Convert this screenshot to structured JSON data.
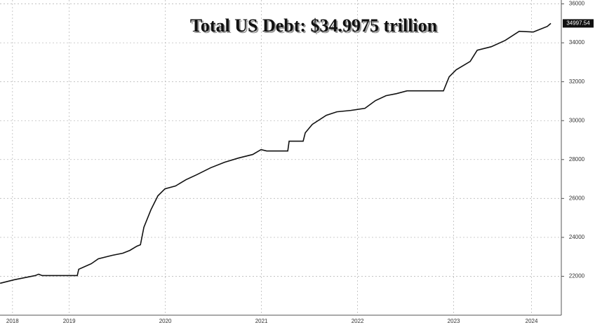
{
  "chart_data": {
    "type": "line",
    "title": "Total US Debt: $34.9975 trillion",
    "x": [
      2018.781,
      2018.927,
      2019.036,
      2019.146,
      2019.182,
      2019.219,
      2019.584,
      2019.599,
      2019.73,
      2019.803,
      2019.949,
      2020.058,
      2020.131,
      2020.204,
      2020.241,
      2020.277,
      2020.35,
      2020.423,
      2020.496,
      2020.606,
      2020.715,
      2020.825,
      2020.971,
      2021.117,
      2021.263,
      2021.409,
      2021.496,
      2021.555,
      2021.774,
      2021.788,
      2021.934,
      2021.956,
      2022.029,
      2022.175,
      2022.285,
      2022.431,
      2022.577,
      2022.686,
      2022.796,
      2022.905,
      2023.015,
      2023.394,
      2023.453,
      2023.526,
      2023.672,
      2023.745,
      2023.891,
      2024.036,
      2024.182,
      2024.328,
      2024.474,
      2024.511
    ],
    "series": [
      {
        "color": "#111111",
        "values": [
          21640,
          21820,
          21928,
          22036,
          22108,
          22036,
          22036,
          22360,
          22647,
          22899,
          23079,
          23187,
          23331,
          23547,
          23619,
          24518,
          25417,
          26137,
          26496,
          26640,
          26964,
          27216,
          27576,
          27863,
          28079,
          28259,
          28511,
          28439,
          28439,
          28942,
          28942,
          29374,
          29806,
          30273,
          30453,
          30525,
          30633,
          31029,
          31281,
          31388,
          31532,
          31532,
          32252,
          32612,
          33043,
          33619,
          33799,
          34122,
          34590,
          34554,
          34842,
          34997.54
        ]
      }
    ],
    "xlim": [
      2018.78,
      2024.62
    ],
    "xticks": [
      {
        "value": 2018.91,
        "label": "2018"
      },
      {
        "value": 2019.5,
        "label": "2019"
      },
      {
        "value": 2020.5,
        "label": "2020"
      },
      {
        "value": 2021.5,
        "label": "2021"
      },
      {
        "value": 2022.5,
        "label": "2022"
      },
      {
        "value": 2023.5,
        "label": "2023"
      },
      {
        "value": 2024.31,
        "label": "2024"
      }
    ],
    "ylim": [
      20000,
      36200
    ],
    "yticks": [
      22000,
      24000,
      26000,
      28000,
      30000,
      32000,
      34000,
      36000
    ],
    "grid": true
  }
}
